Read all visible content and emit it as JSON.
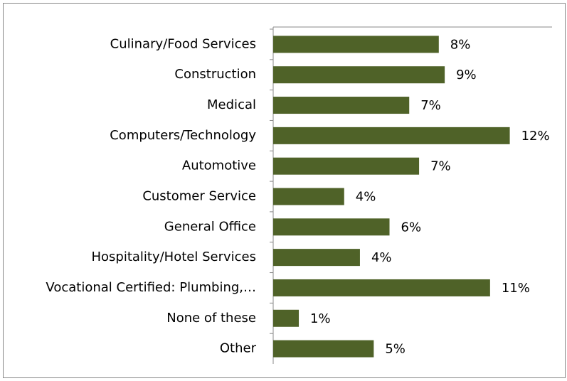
{
  "chart_data": {
    "type": "bar",
    "orientation": "horizontal",
    "categories": [
      "Culinary/Food Services",
      "Construction",
      "Medical",
      "Computers/Technology",
      "Automotive",
      "Customer Service",
      "General Office",
      "Hospitality/Hotel Services",
      "Vocational Certified: Plumbing,…",
      "None of these",
      "Other"
    ],
    "values": [
      8.4,
      8.7,
      6.9,
      12.0,
      7.4,
      3.6,
      5.9,
      4.4,
      11.0,
      1.3,
      5.1
    ],
    "value_labels": [
      "8%",
      "9%",
      "7%",
      "12%",
      "7%",
      "4%",
      "6%",
      "4%",
      "11%",
      "1%",
      "5%"
    ],
    "color": "#4f6228",
    "xlim": [
      0,
      14
    ]
  }
}
